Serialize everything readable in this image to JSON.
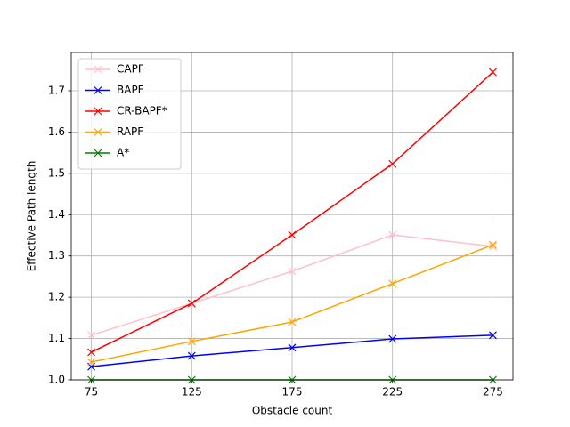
{
  "chart_data": {
    "type": "line",
    "x_label": "Obstacle count",
    "y_label": "Effective Path length",
    "x": [
      75,
      125,
      175,
      225,
      275
    ],
    "series": [
      {
        "name": "CAPF",
        "color": "#ffc0cb",
        "values": [
          1.108,
          1.185,
          1.263,
          1.351,
          1.323
        ]
      },
      {
        "name": "BAPF",
        "color": "#0000ff",
        "values": [
          1.032,
          1.058,
          1.078,
          1.099,
          1.108
        ]
      },
      {
        "name": "CR-BAPF*",
        "color": "#ff0000",
        "values": [
          1.067,
          1.185,
          1.351,
          1.523,
          1.745
        ]
      },
      {
        "name": "RAPF",
        "color": "#ffa500",
        "values": [
          1.043,
          1.093,
          1.14,
          1.233,
          1.327
        ]
      },
      {
        "name": "A*",
        "color": "#008000",
        "values": [
          1,
          1,
          1,
          1,
          1
        ]
      }
    ],
    "xlim": [
      65,
      285
    ],
    "xticks": [
      75,
      125,
      175,
      225,
      275
    ],
    "ylim": [
      1.0,
      1.7926
    ],
    "yticks": [
      {
        "value": 1.0,
        "label": "1.0"
      },
      1.1,
      1.2,
      1.3,
      1.4,
      1.5,
      1.6,
      1.7
    ],
    "grid": true,
    "legend": "upper left"
  }
}
